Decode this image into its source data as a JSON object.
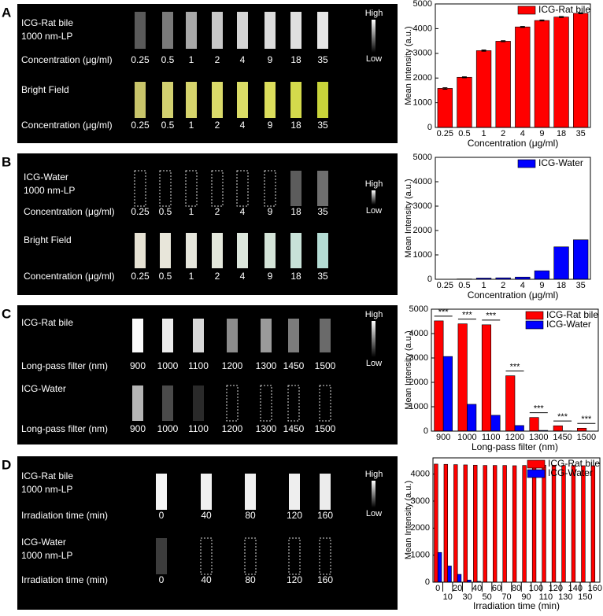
{
  "image_panels": [
    {
      "letter": "A",
      "high": "High",
      "low": "Low",
      "rows": [
        {
          "label_lines": [
            "ICG-Rat bile",
            "1000 nm-LP"
          ],
          "axis_label": "Concentration (μg/ml)",
          "tick_labels": [
            "0.25",
            "0.5",
            "1",
            "2",
            "4",
            "9",
            "18",
            "35"
          ],
          "strip_colors": [
            "#5a5a5a",
            "#7a7a7a",
            "#a8a8a8",
            "#c8c8c8",
            "#d4d4d4",
            "#dcdcdc",
            "#e0e0e0",
            "#e6e6e6"
          ]
        },
        {
          "label_lines": [
            "Bright Field"
          ],
          "axis_label": "Concentration (μg/ml)",
          "tick_labels": [
            "0.25",
            "0.5",
            "1",
            "2",
            "4",
            "9",
            "18",
            "35"
          ],
          "strip_colors": [
            "#c8c46a",
            "#d2d070",
            "#d6d46c",
            "#dada6a",
            "#dadc66",
            "#dcde5c",
            "#d4da4c",
            "#c8d43a"
          ]
        }
      ]
    },
    {
      "letter": "B",
      "high": "High",
      "low": "Low",
      "rows": [
        {
          "label_lines": [
            "ICG-Water",
            "1000 nm-LP"
          ],
          "axis_label": "Concentration (μg/ml)",
          "tick_labels": [
            "0.25",
            "0.5",
            "1",
            "2",
            "4",
            "9",
            "18",
            "35"
          ],
          "strip_colors": [
            null,
            null,
            null,
            null,
            null,
            null,
            "#5c5c5c",
            "#6e6e6e"
          ]
        },
        {
          "label_lines": [
            "Bright Field"
          ],
          "axis_label": "Concentration (μg/ml)",
          "tick_labels": [
            "0.25",
            "0.5",
            "1",
            "2",
            "4",
            "9",
            "18",
            "35"
          ],
          "strip_colors": [
            "#e6e2d4",
            "#e8e6da",
            "#e6e6dc",
            "#e4e8dc",
            "#dce6dc",
            "#d4e4d8",
            "#c8e2d8",
            "#b4dcd4"
          ]
        }
      ]
    },
    {
      "letter": "C",
      "high": "High",
      "low": "Low",
      "rows": [
        {
          "label_lines": [
            "ICG-Rat bile"
          ],
          "axis_label": "Long-pass filter (nm)",
          "tick_labels": [
            "900",
            "1000",
            "1100",
            "1200",
            "1300",
            "1450",
            "1500"
          ],
          "strip_colors": [
            "#fafafa",
            "#ececec",
            "#d8d8d8",
            "#8c8c8c",
            "#9a9a9a",
            "#7c7c7c",
            "#6a6a6a"
          ]
        },
        {
          "label_lines": [
            "ICG-Water"
          ],
          "axis_label": "Long-pass filter (nm)",
          "tick_labels": [
            "900",
            "1000",
            "1100",
            "1200",
            "1300",
            "1450",
            "1500"
          ],
          "strip_colors": [
            "#b4b4b4",
            "#4a4a4a",
            "#2a2a2a",
            null,
            null,
            null,
            null
          ]
        }
      ]
    },
    {
      "letter": "D",
      "high": "High",
      "low": "Low",
      "rows": [
        {
          "label_lines": [
            "ICG-Rat bile",
            "1000 nm-LP"
          ],
          "axis_label": "Irradiation time (min)",
          "tick_labels": [
            "0",
            "40",
            "80",
            "120",
            "160"
          ],
          "strip_colors": [
            "#f4f4f4",
            "#f0f0f0",
            "#f0f0f0",
            "#eeeeee",
            "#ececec"
          ]
        },
        {
          "label_lines": [
            "ICG-Water",
            "1000 nm-LP"
          ],
          "axis_label": "Irradiation time (min)",
          "tick_labels": [
            "0",
            "40",
            "80",
            "120",
            "160"
          ],
          "strip_colors": [
            "#3c3c3c",
            null,
            null,
            null,
            null
          ]
        }
      ]
    }
  ],
  "chart_data": [
    {
      "type": "bar",
      "xlabel": "Concentration (μg/ml)",
      "ylabel": "Mean Intensity (a.u.)",
      "categories": [
        "0.25",
        "0.5",
        "1",
        "2",
        "4",
        "9",
        "18",
        "35"
      ],
      "series": [
        {
          "name": "ICG-Rat bile",
          "color": "#ff0000",
          "values": [
            1580,
            2030,
            3110,
            3490,
            4070,
            4330,
            4470,
            4620
          ],
          "errors": [
            30,
            20,
            25,
            20,
            20,
            20,
            20,
            20
          ]
        }
      ],
      "ylim": [
        0,
        5000
      ],
      "yticks": [
        0,
        1000,
        2000,
        3000,
        4000,
        5000
      ],
      "legend": "upper-right"
    },
    {
      "type": "bar",
      "xlabel": "Concentration (μg/ml)",
      "ylabel": "Mean Intensity (a.u.)",
      "categories": [
        "0.25",
        "0.5",
        "1",
        "2",
        "4",
        "9",
        "18",
        "35"
      ],
      "series": [
        {
          "name": "ICG-Water",
          "color": "#0000ff",
          "values": [
            5,
            15,
            50,
            60,
            90,
            350,
            1330,
            1620
          ]
        }
      ],
      "ylim": [
        0,
        5000
      ],
      "yticks": [
        0,
        1000,
        2000,
        3000,
        4000,
        5000
      ],
      "legend": "upper-right"
    },
    {
      "type": "bar",
      "xlabel": "Long-pass filter (nm)",
      "ylabel": "Mean Intensity (a.u.)",
      "categories": [
        "900",
        "1000",
        "1100",
        "1200",
        "1300",
        "1450",
        "1500"
      ],
      "series": [
        {
          "name": "ICG-Rat bile",
          "color": "#ff0000",
          "values": [
            4520,
            4400,
            4360,
            2270,
            560,
            220,
            120
          ]
        },
        {
          "name": "ICG-Water",
          "color": "#0000ff",
          "values": [
            3060,
            1100,
            650,
            230,
            30,
            10,
            5
          ]
        }
      ],
      "annotations": [
        "***",
        "***",
        "***",
        "***",
        "***",
        "***",
        "***"
      ],
      "ylim": [
        0,
        5000
      ],
      "yticks": [
        0,
        1000,
        2000,
        3000,
        4000,
        5000
      ],
      "legend": "upper-right"
    },
    {
      "type": "bar",
      "xlabel": "Irradiation time (min)",
      "ylabel": "Mean Intensity (a.u.)",
      "categories": [
        "0",
        "10",
        "20",
        "30",
        "40",
        "50",
        "60",
        "70",
        "80",
        "90",
        "100",
        "110",
        "120",
        "130",
        "140",
        "150",
        "160"
      ],
      "series": [
        {
          "name": "ICG-Rat bile",
          "color": "#ff0000",
          "values": [
            4370,
            4360,
            4350,
            4340,
            4330,
            4320,
            4320,
            4320,
            4310,
            4320,
            4320,
            4330,
            4330,
            4320,
            4320,
            4310,
            4310
          ]
        },
        {
          "name": "ICG-Water",
          "color": "#0000ff",
          "values": [
            1100,
            600,
            290,
            80,
            30,
            10,
            5,
            0,
            0,
            0,
            0,
            0,
            0,
            0,
            0,
            0,
            0
          ]
        }
      ],
      "ylim": [
        0,
        4600
      ],
      "yticks": [
        0,
        1000,
        2000,
        3000,
        4000
      ],
      "legend": "upper-right"
    }
  ]
}
